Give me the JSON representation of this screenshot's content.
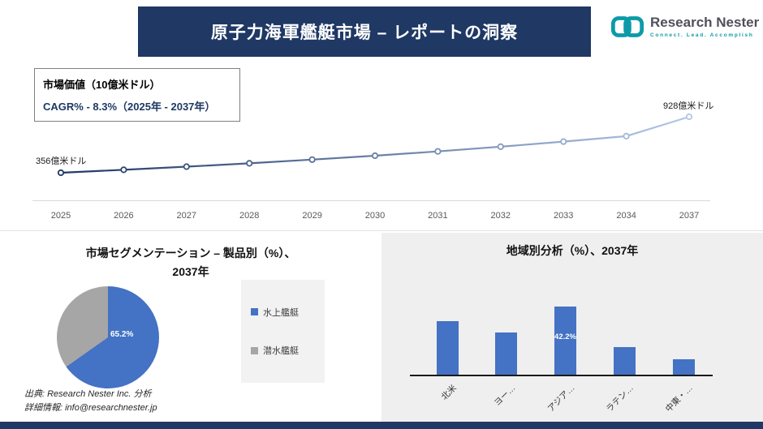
{
  "header": {
    "title": "原子力海軍艦艇市場 – レポートの洞察"
  },
  "logo": {
    "name": "Research Nester",
    "tagline": "Connect. Lead. Accomplish",
    "teal": "#0d9aa8"
  },
  "info_box": {
    "line1": "市場価値（10億米ドル）",
    "line2": "CAGR% - 8.3%（2025年 - 2037年）"
  },
  "line_chart": {
    "start_label": "356億米ドル",
    "end_label": "928億米ドル"
  },
  "pie_section": {
    "title_line1": "市場セグメンテーション – 製品別（%）、",
    "title_line2": "2037年",
    "data_label": "65.2%",
    "legend": [
      {
        "label": "水上艦艇",
        "color": "#4472c4"
      },
      {
        "label": "潜水艦艇",
        "color": "#a6a6a6"
      }
    ]
  },
  "bar_section": {
    "title": "地域別分析（%）、2037年"
  },
  "footer": {
    "source": "出典: Research Nester Inc. 分析",
    "info": "詳細情報: info@researchnester.jp"
  },
  "colors": {
    "navy": "#1f3864",
    "blue": "#4472c4",
    "gray": "#a6a6a6",
    "panel_gray": "#efefef"
  },
  "chart_data": [
    {
      "type": "line",
      "title": "市場価値（10億米ドル）",
      "x": [
        "2025",
        "2026",
        "2027",
        "2028",
        "2029",
        "2030",
        "2031",
        "2032",
        "2033",
        "2034",
        "2037"
      ],
      "values": [
        356,
        386,
        418,
        452,
        490,
        530,
        574,
        622,
        674,
        730,
        928
      ],
      "unit": "億米ドル",
      "cagr_percent": 8.3,
      "point_labels": {
        "2025": "356億米ドル",
        "2037": "928億米ドル"
      },
      "line_gradient": [
        "#1f3864",
        "#b4c7e7"
      ],
      "grid": false,
      "legend": false
    },
    {
      "type": "pie",
      "title": "市場セグメンテーション – 製品別（%）、2037年",
      "labels": [
        "水上艦艇",
        "潜水艦艇"
      ],
      "values": [
        65.2,
        34.8
      ],
      "colors": [
        "#4472c4",
        "#a6a6a6"
      ],
      "data_label": "65.2%",
      "legend_position": "right"
    },
    {
      "type": "bar",
      "title": "地域別分析（%）、2037年",
      "categories": [
        "北米",
        "ヨー…",
        "アジア…",
        "ラテン…",
        "中東・…"
      ],
      "values": [
        33,
        26,
        42.2,
        17,
        9.5
      ],
      "labeled_bar": {
        "index": 2,
        "label": "42.2%"
      },
      "bar_color": "#4472c4",
      "ylim": [
        0,
        50
      ],
      "grid": false
    }
  ]
}
